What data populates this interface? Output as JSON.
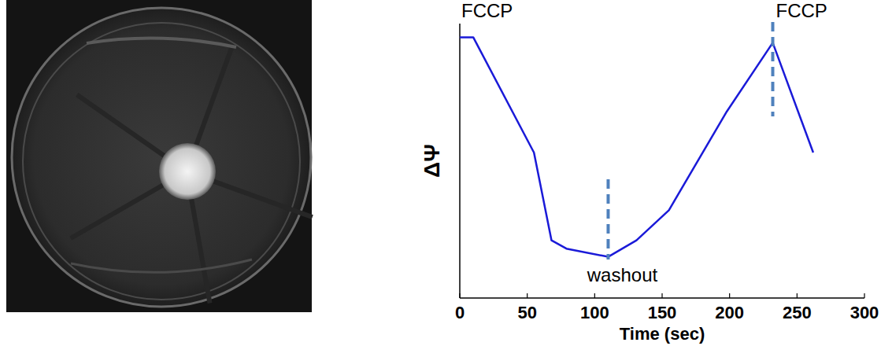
{
  "chart_data": {
    "type": "line",
    "x": [
      0,
      10,
      55,
      68,
      79,
      110,
      131,
      155,
      198,
      232,
      262
    ],
    "values": [
      95,
      95,
      53,
      21,
      18,
      15,
      21,
      32,
      68,
      93,
      53
    ],
    "color": "#1a1ad8",
    "xlim": [
      0,
      300
    ],
    "xticks": [
      0,
      50,
      100,
      150,
      200,
      250,
      300
    ],
    "ylim": [
      0,
      100
    ],
    "tick_labels": "x",
    "xlabel": "Time (sec)",
    "ylabel": "ΔΨ",
    "annotations": [
      {
        "text": "FCCP",
        "x": 0
      },
      {
        "text": "washout",
        "x": 110
      },
      {
        "text": "FCCP",
        "x": 232
      }
    ]
  }
}
